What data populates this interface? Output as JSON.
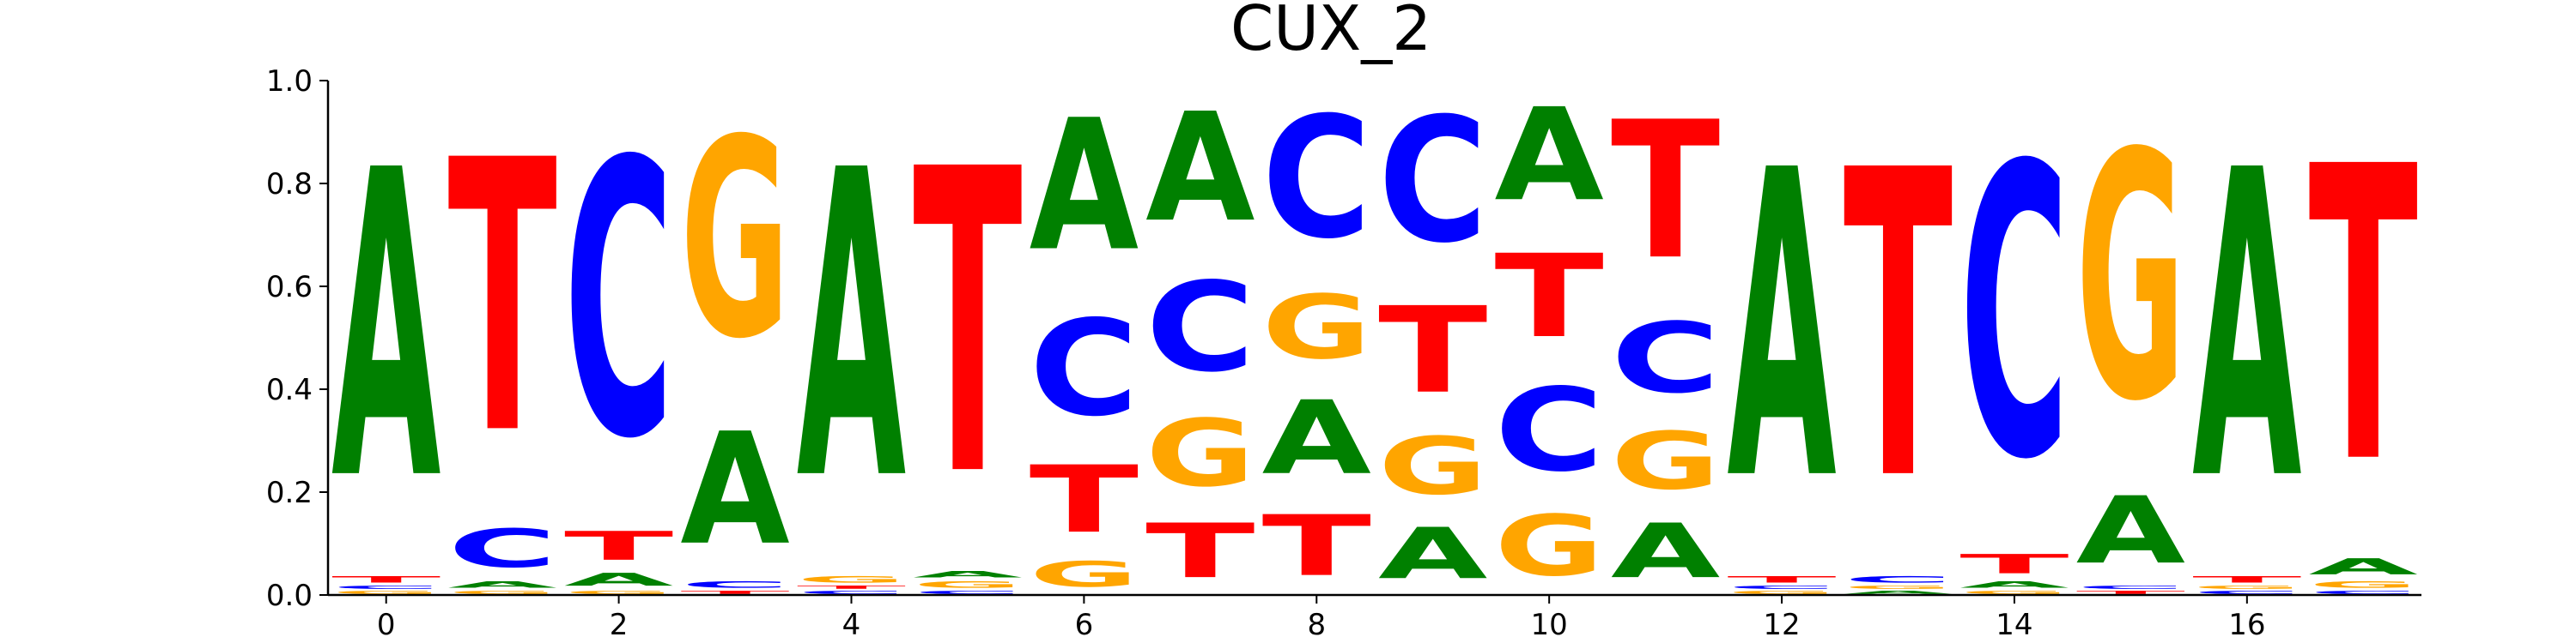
{
  "chart_data": {
    "type": "sequence-logo",
    "title": "CUX_2",
    "xlabel": "",
    "ylabel": "",
    "ylim": [
      0,
      1.0
    ],
    "xlim": [
      -0.5,
      17.5
    ],
    "x_ticks": [
      0,
      2,
      4,
      6,
      8,
      10,
      12,
      14,
      16
    ],
    "x_tick_labels": [
      "0",
      "2",
      "4",
      "6",
      "8",
      "10",
      "12",
      "14",
      "16"
    ],
    "y_ticks": [
      0.0,
      0.2,
      0.4,
      0.6,
      0.8,
      1.0
    ],
    "y_tick_labels": [
      "0.0",
      "0.2",
      "0.4",
      "0.6",
      "0.8",
      "1.0"
    ],
    "colors": {
      "A": "#008000",
      "C": "#0000ff",
      "G": "#ffa500",
      "T": "#ff0000"
    },
    "positions": [
      [
        {
          "base": "G",
          "value": 0.01
        },
        {
          "base": "C",
          "value": 0.01
        },
        {
          "base": "T",
          "value": 0.02
        },
        {
          "base": "A",
          "value": 0.96
        }
      ],
      [
        {
          "base": "G",
          "value": 0.01
        },
        {
          "base": "A",
          "value": 0.02
        },
        {
          "base": "C",
          "value": 0.12
        },
        {
          "base": "T",
          "value": 0.85
        }
      ],
      [
        {
          "base": "G",
          "value": 0.01
        },
        {
          "base": "A",
          "value": 0.04
        },
        {
          "base": "T",
          "value": 0.09
        },
        {
          "base": "C",
          "value": 0.86
        }
      ],
      [
        {
          "base": "T",
          "value": 0.01
        },
        {
          "base": "C",
          "value": 0.02
        },
        {
          "base": "A",
          "value": 0.35
        },
        {
          "base": "G",
          "value": 0.62
        }
      ],
      [
        {
          "base": "C",
          "value": 0.01
        },
        {
          "base": "T",
          "value": 0.01
        },
        {
          "base": "G",
          "value": 0.02
        },
        {
          "base": "A",
          "value": 0.96
        }
      ],
      [
        {
          "base": "C",
          "value": 0.01
        },
        {
          "base": "G",
          "value": 0.02
        },
        {
          "base": "A",
          "value": 0.02
        },
        {
          "base": "T",
          "value": 0.95
        }
      ],
      [
        {
          "base": "G",
          "value": 0.08
        },
        {
          "base": "T",
          "value": 0.21
        },
        {
          "base": "C",
          "value": 0.3
        },
        {
          "base": "A",
          "value": 0.41
        }
      ],
      [
        {
          "base": "T",
          "value": 0.17
        },
        {
          "base": "G",
          "value": 0.21
        },
        {
          "base": "C",
          "value": 0.28
        },
        {
          "base": "A",
          "value": 0.34
        }
      ],
      [
        {
          "base": "T",
          "value": 0.19
        },
        {
          "base": "A",
          "value": 0.23
        },
        {
          "base": "G",
          "value": 0.2
        },
        {
          "base": "C",
          "value": 0.38
        }
      ],
      [
        {
          "base": "A",
          "value": 0.16
        },
        {
          "base": "G",
          "value": 0.18
        },
        {
          "base": "T",
          "value": 0.27
        },
        {
          "base": "C",
          "value": 0.39
        }
      ],
      [
        {
          "base": "G",
          "value": 0.19
        },
        {
          "base": "C",
          "value": 0.26
        },
        {
          "base": "T",
          "value": 0.26
        },
        {
          "base": "A",
          "value": 0.29
        }
      ],
      [
        {
          "base": "A",
          "value": 0.17
        },
        {
          "base": "G",
          "value": 0.18
        },
        {
          "base": "C",
          "value": 0.22
        },
        {
          "base": "T",
          "value": 0.43
        }
      ],
      [
        {
          "base": "G",
          "value": 0.01
        },
        {
          "base": "C",
          "value": 0.01
        },
        {
          "base": "T",
          "value": 0.02
        },
        {
          "base": "A",
          "value": 0.96
        }
      ],
      [
        {
          "base": "A",
          "value": 0.01
        },
        {
          "base": "G",
          "value": 0.01
        },
        {
          "base": "C",
          "value": 0.02
        },
        {
          "base": "T",
          "value": 0.96
        }
      ],
      [
        {
          "base": "G",
          "value": 0.01
        },
        {
          "base": "A",
          "value": 0.02
        },
        {
          "base": "T",
          "value": 0.06
        },
        {
          "base": "C",
          "value": 0.91
        }
      ],
      [
        {
          "base": "T",
          "value": 0.01
        },
        {
          "base": "C",
          "value": 0.01
        },
        {
          "base": "A",
          "value": 0.21
        },
        {
          "base": "G",
          "value": 0.77
        }
      ],
      [
        {
          "base": "C",
          "value": 0.01
        },
        {
          "base": "G",
          "value": 0.01
        },
        {
          "base": "T",
          "value": 0.02
        },
        {
          "base": "A",
          "value": 0.96
        }
      ],
      [
        {
          "base": "C",
          "value": 0.01
        },
        {
          "base": "G",
          "value": 0.02
        },
        {
          "base": "A",
          "value": 0.05
        },
        {
          "base": "T",
          "value": 0.92
        }
      ]
    ]
  }
}
